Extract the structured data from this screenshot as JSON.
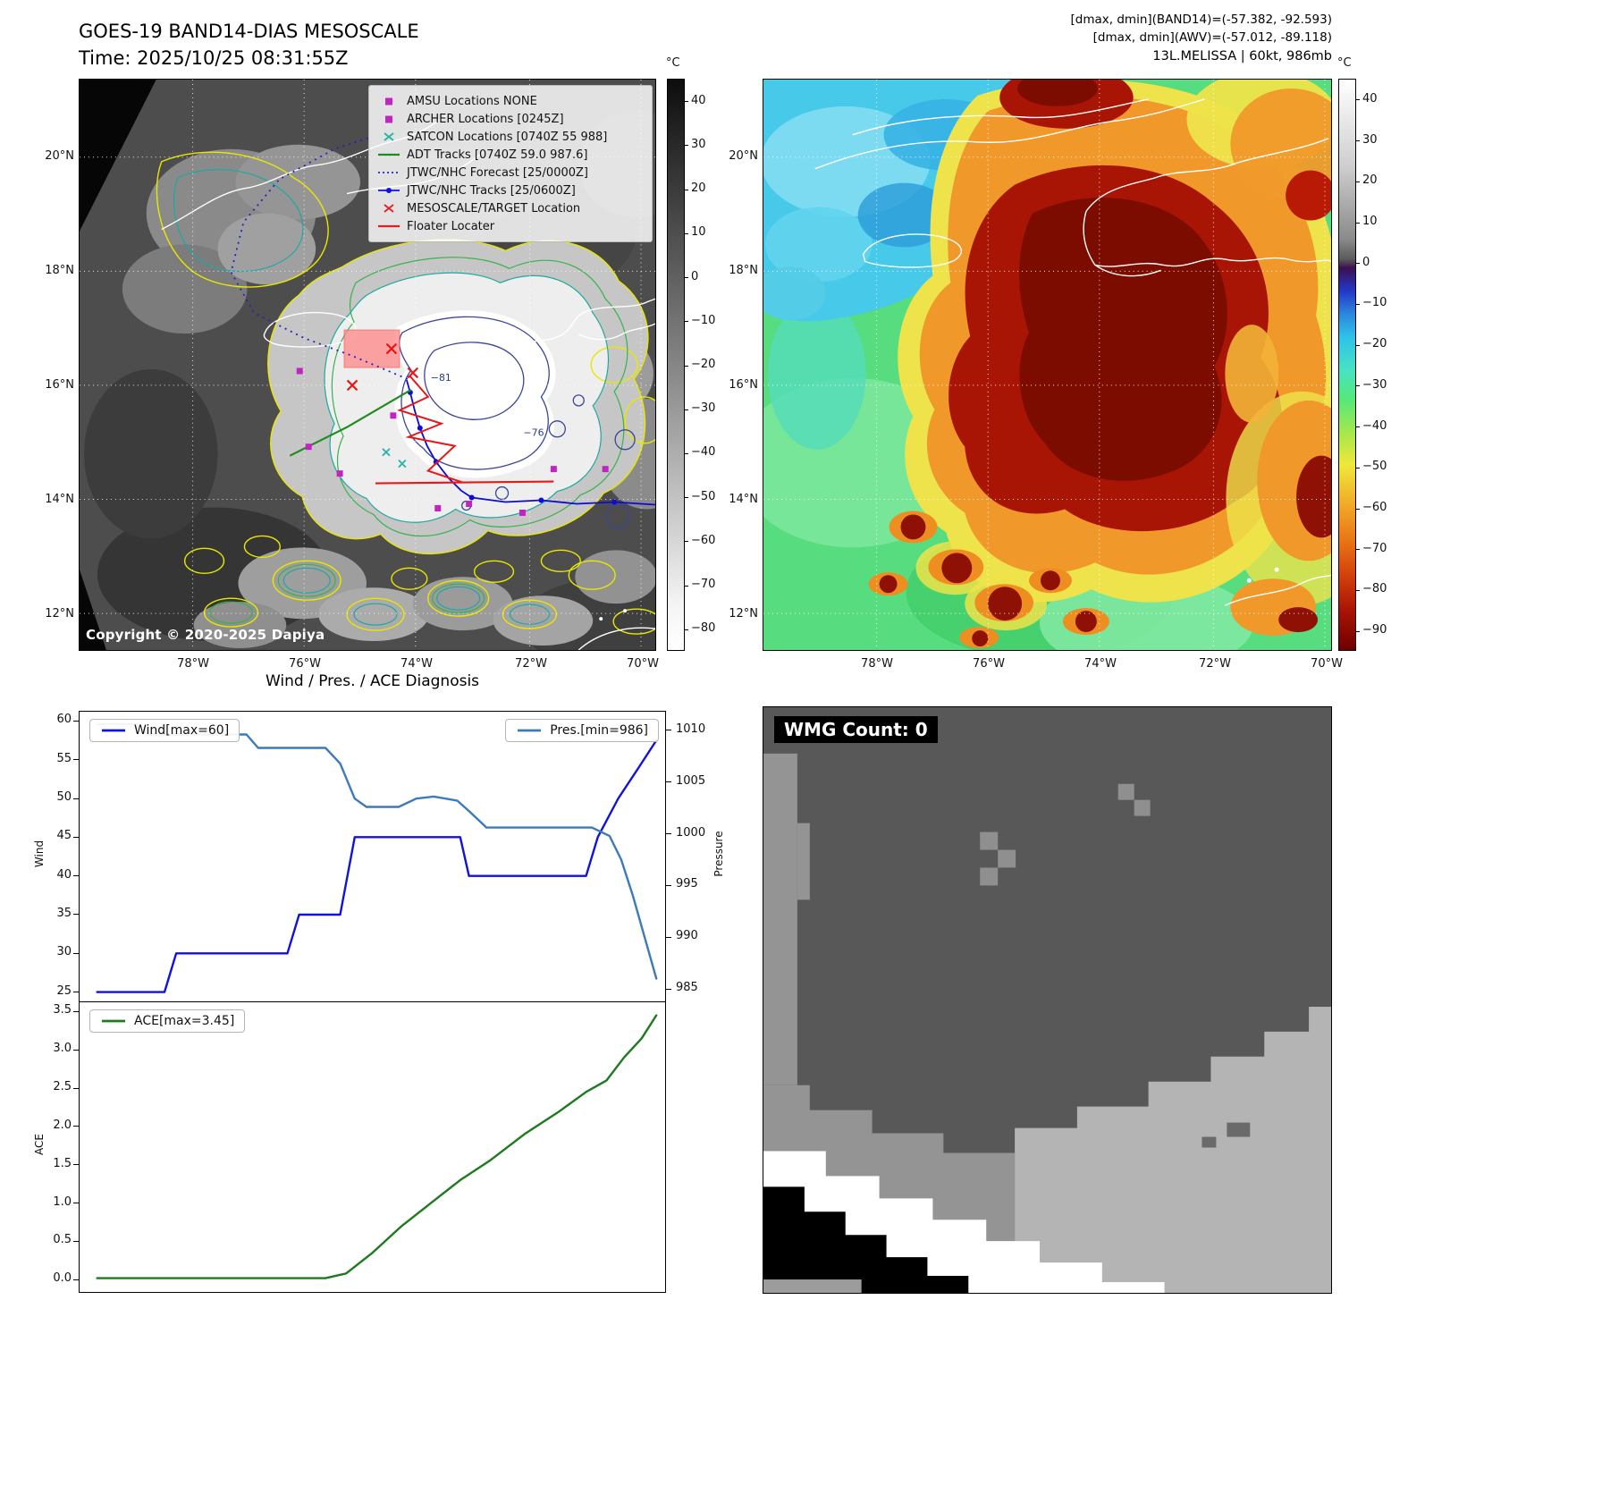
{
  "panel_a": {
    "title_line1": "GOES-19 BAND14-DIAS MESOSCALE",
    "title_line2": "Time: 2025/10/25 08:31:55Z",
    "copyright": "Copyright © 2020-2025 Dapiya",
    "lat_ticks": [
      "20°N",
      "18°N",
      "16°N",
      "14°N",
      "12°N"
    ],
    "lon_ticks": [
      "78°W",
      "76°W",
      "74°W",
      "72°W",
      "70°W"
    ],
    "colorbar": {
      "unit": "°C",
      "ticks": [
        "40",
        "30",
        "20",
        "10",
        "0",
        "−10",
        "−20",
        "−30",
        "−40",
        "−50",
        "−60",
        "−70",
        "−80"
      ]
    },
    "contour_labels": [
      "−81",
      "−76"
    ],
    "legend_items": [
      {
        "marker": "square",
        "color": "#c224c2",
        "label": "AMSU Locations NONE"
      },
      {
        "marker": "square",
        "color": "#c224c2",
        "label": "ARCHER Locations [0245Z]"
      },
      {
        "marker": "x",
        "color": "#26b3a7",
        "label": "SATCON Locations [0740Z 55 988]"
      },
      {
        "marker": "line",
        "color": "#1e8c1e",
        "label": "ADT Tracks [0740Z 59.0 987.6]"
      },
      {
        "marker": "dotted",
        "color": "#2222cc",
        "label": "JTWC/NHC Forecast [25/0000Z]"
      },
      {
        "marker": "line-dot",
        "color": "#1212dd",
        "label": "JTWC/NHC Tracks [25/0600Z]"
      },
      {
        "marker": "x",
        "color": "#e02020",
        "label": "MESOSCALE/TARGET Location"
      },
      {
        "marker": "line",
        "color": "#e02020",
        "label": "Floater Locater"
      }
    ]
  },
  "panel_b": {
    "header_lines": [
      "[dmax, dmin](BAND14)=(-57.382, -92.593)",
      "[dmax, dmin](AWV)=(-57.012, -89.118)",
      "13L.MELISSA | 60kt, 986mb"
    ],
    "lat_ticks": [
      "20°N",
      "18°N",
      "16°N",
      "14°N",
      "12°N"
    ],
    "lon_ticks": [
      "78°W",
      "76°W",
      "74°W",
      "72°W",
      "70°W"
    ],
    "colorbar": {
      "unit": "°C",
      "ticks": [
        "40",
        "30",
        "20",
        "10",
        "0",
        "−10",
        "−20",
        "−30",
        "−40",
        "−50",
        "−60",
        "−70",
        "−80",
        "−90"
      ]
    }
  },
  "chart_data": [
    {
      "type": "line",
      "title": "Wind / Pres. / ACE Diagnosis",
      "xlabel": "",
      "ylabel": "Wind",
      "y2label": "Pressure",
      "x_range": [
        0,
        1
      ],
      "ylim": [
        23.8,
        61.2
      ],
      "y2lim": [
        983.8,
        1011.8
      ],
      "yticks": [
        "25",
        "30",
        "35",
        "40",
        "45",
        "50",
        "55",
        "60"
      ],
      "y2ticks": [
        "985",
        "990",
        "995",
        "1000",
        "1005",
        "1010"
      ],
      "grid": false,
      "legend": [
        {
          "label": "Wind[max=60]",
          "color": "#1212dd"
        },
        {
          "label": "Pres.[min=986]",
          "color": "#3d7ab8"
        }
      ],
      "series": [
        {
          "name": "Wind",
          "axis": "left",
          "color": "#1212dd",
          "points": [
            [
              0.03,
              25
            ],
            [
              0.145,
              25
            ],
            [
              0.165,
              30
            ],
            [
              0.355,
              30
            ],
            [
              0.375,
              35
            ],
            [
              0.445,
              35
            ],
            [
              0.47,
              45
            ],
            [
              0.65,
              45
            ],
            [
              0.665,
              40
            ],
            [
              0.865,
              40
            ],
            [
              0.885,
              45
            ],
            [
              0.92,
              50
            ],
            [
              0.955,
              54
            ],
            [
              0.985,
              57.5
            ]
          ]
        },
        {
          "name": "Pressure",
          "axis": "right",
          "color": "#3d7ab8",
          "points": [
            [
              0.03,
              1010.6
            ],
            [
              0.1,
              1010.6
            ],
            [
              0.115,
              1009.6
            ],
            [
              0.285,
              1009.6
            ],
            [
              0.305,
              1008.3
            ],
            [
              0.42,
              1008.3
            ],
            [
              0.445,
              1006.8
            ],
            [
              0.47,
              1003.4
            ],
            [
              0.49,
              1002.6
            ],
            [
              0.545,
              1002.6
            ],
            [
              0.575,
              1003.4
            ],
            [
              0.605,
              1003.6
            ],
            [
              0.645,
              1003.2
            ],
            [
              0.665,
              1002.2
            ],
            [
              0.695,
              1000.6
            ],
            [
              0.875,
              1000.6
            ],
            [
              0.905,
              999.8
            ],
            [
              0.925,
              997.5
            ],
            [
              0.945,
              994
            ],
            [
              0.965,
              990
            ],
            [
              0.985,
              986
            ]
          ]
        }
      ]
    },
    {
      "type": "line",
      "title": "",
      "xlabel": "",
      "ylabel": "ACE",
      "x_range": [
        0,
        1
      ],
      "ylim": [
        -0.16,
        3.62
      ],
      "yticks": [
        "0.0",
        "0.5",
        "1.0",
        "1.5",
        "2.0",
        "2.5",
        "3.0",
        "3.5"
      ],
      "grid": false,
      "legend": [
        {
          "label": "ACE[max=3.45]",
          "color": "#1f7a1f"
        }
      ],
      "series": [
        {
          "name": "ACE",
          "axis": "left",
          "color": "#1f7a1f",
          "points": [
            [
              0.03,
              0.02
            ],
            [
              0.42,
              0.02
            ],
            [
              0.455,
              0.08
            ],
            [
              0.5,
              0.35
            ],
            [
              0.55,
              0.7
            ],
            [
              0.6,
              1.0
            ],
            [
              0.65,
              1.3
            ],
            [
              0.7,
              1.55
            ],
            [
              0.76,
              1.9
            ],
            [
              0.82,
              2.2
            ],
            [
              0.865,
              2.45
            ],
            [
              0.9,
              2.6
            ],
            [
              0.93,
              2.9
            ],
            [
              0.96,
              3.15
            ],
            [
              0.985,
              3.45
            ]
          ]
        }
      ]
    }
  ],
  "panel_d": {
    "label": "WMG Count: 0"
  }
}
